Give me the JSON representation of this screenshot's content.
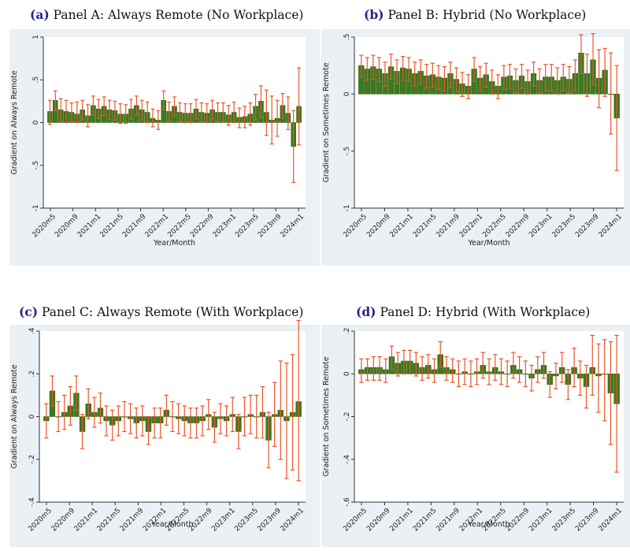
{
  "chart_data": [
    {
      "type": "bar",
      "title_letter": "(a)",
      "title": "Panel A: Always Remote (No Workplace)",
      "xlabel": "Year/Month",
      "ylabel": "Gradient on Always Remote",
      "ylim": [
        -1,
        1
      ],
      "yticks": [
        {
          "v": 1,
          "l": "1"
        },
        {
          "v": 0.5,
          "l": ".5"
        },
        {
          "v": 0,
          "l": "0"
        },
        {
          "v": -0.5,
          "l": "-.5"
        },
        {
          "v": -1,
          "l": "-1"
        }
      ],
      "xticks": [
        "2020m5",
        "2020m9",
        "2021m1",
        "2021m5",
        "2021m9",
        "2022m1",
        "2022m5",
        "2022m9",
        "2023m1",
        "2023m5",
        "2023m9",
        "2024m1"
      ],
      "bar_color": "#3d7a1f",
      "ci_color": "#e8562a",
      "values": [
        0.13,
        0.26,
        0.15,
        0.13,
        0.12,
        0.1,
        0.15,
        0.08,
        0.2,
        0.16,
        0.19,
        0.15,
        0.14,
        0.1,
        0.1,
        0.16,
        0.2,
        0.15,
        0.12,
        0.05,
        0.03,
        0.26,
        0.13,
        0.19,
        0.12,
        0.11,
        0.11,
        0.16,
        0.12,
        0.11,
        0.15,
        0.12,
        0.12,
        0.09,
        0.12,
        0.06,
        0.07,
        0.1,
        0.19,
        0.25,
        0.12,
        0.03,
        0.05,
        0.2,
        0.11,
        -0.28,
        0.19
      ],
      "ci_low": [
        -0.02,
        0.14,
        0.01,
        0.0,
        0.01,
        0.0,
        0.03,
        -0.05,
        0.09,
        0.05,
        0.08,
        0.04,
        0.03,
        -0.01,
        -0.01,
        0.04,
        0.09,
        0.03,
        0.0,
        -0.05,
        -0.08,
        0.15,
        0.02,
        0.08,
        0.01,
        0.0,
        0.0,
        0.04,
        0.01,
        0.0,
        0.03,
        0.01,
        0.01,
        -0.03,
        0.0,
        -0.06,
        -0.06,
        -0.03,
        0.03,
        0.06,
        -0.15,
        -0.25,
        -0.16,
        0.05,
        -0.08,
        -0.7,
        -0.26
      ],
      "ci_high": [
        0.26,
        0.37,
        0.28,
        0.26,
        0.23,
        0.24,
        0.26,
        0.21,
        0.31,
        0.27,
        0.3,
        0.26,
        0.25,
        0.22,
        0.21,
        0.27,
        0.31,
        0.26,
        0.24,
        0.16,
        0.14,
        0.37,
        0.24,
        0.3,
        0.23,
        0.22,
        0.22,
        0.27,
        0.23,
        0.22,
        0.26,
        0.23,
        0.23,
        0.2,
        0.24,
        0.17,
        0.19,
        0.23,
        0.33,
        0.43,
        0.38,
        0.31,
        0.26,
        0.34,
        0.3,
        0.14,
        0.64
      ]
    },
    {
      "type": "bar",
      "title_letter": "(b)",
      "title": "Panel B: Hybrid (No Workplace)",
      "xlabel": "Year/Month",
      "ylabel": "Gradient on Sometimes Remote",
      "ylim": [
        -1,
        0.5
      ],
      "yticks": [
        {
          "v": 0.5,
          "l": ".5"
        },
        {
          "v": 0,
          "l": "0"
        },
        {
          "v": -0.5,
          "l": "-.5"
        },
        {
          "v": -1,
          "l": "-1"
        }
      ],
      "xticks": [
        "2020m5",
        "2020m9",
        "2021m1",
        "2021m5",
        "2021m9",
        "2022m1",
        "2022m5",
        "2022m9",
        "2023m1",
        "2023m5",
        "2023m9",
        "2024m1"
      ],
      "bar_color": "#3d7a1f",
      "ci_color": "#e8562a",
      "values": [
        0.25,
        0.22,
        0.24,
        0.22,
        0.18,
        0.24,
        0.2,
        0.23,
        0.22,
        0.18,
        0.2,
        0.16,
        0.17,
        0.15,
        0.14,
        0.18,
        0.13,
        0.09,
        0.07,
        0.22,
        0.14,
        0.17,
        0.11,
        0.07,
        0.15,
        0.16,
        0.12,
        0.16,
        0.11,
        0.18,
        0.12,
        0.15,
        0.15,
        0.12,
        0.15,
        0.13,
        0.18,
        0.36,
        0.18,
        0.3,
        0.14,
        0.21,
        0.0,
        -0.21
      ],
      "ci_low": [
        0.15,
        0.12,
        0.13,
        0.11,
        0.07,
        0.13,
        0.09,
        0.12,
        0.11,
        0.07,
        0.09,
        0.05,
        0.06,
        0.04,
        0.03,
        0.06,
        0.02,
        -0.02,
        -0.04,
        0.11,
        0.03,
        0.06,
        0.0,
        -0.04,
        0.04,
        0.05,
        0.01,
        0.05,
        0.0,
        0.07,
        0.01,
        0.03,
        0.03,
        0.0,
        0.03,
        0.01,
        0.03,
        0.18,
        -0.02,
        0.08,
        -0.12,
        -0.02,
        -0.35,
        -0.67
      ],
      "ci_high": [
        0.34,
        0.32,
        0.34,
        0.32,
        0.28,
        0.35,
        0.3,
        0.33,
        0.32,
        0.28,
        0.3,
        0.26,
        0.27,
        0.25,
        0.24,
        0.28,
        0.23,
        0.19,
        0.17,
        0.32,
        0.24,
        0.27,
        0.21,
        0.17,
        0.25,
        0.26,
        0.22,
        0.26,
        0.21,
        0.28,
        0.22,
        0.26,
        0.26,
        0.23,
        0.26,
        0.24,
        0.3,
        0.52,
        0.35,
        0.53,
        0.39,
        0.4,
        0.36,
        0.25
      ]
    },
    {
      "type": "bar",
      "title_letter": "(c)",
      "title": "Panel C: Always Remote (With Workplace)",
      "xlabel": "Year/Month",
      "ylabel": "Gradient on Always Remote",
      "ylim": [
        -0.4,
        0.4
      ],
      "yticks": [
        {
          "v": 0.4,
          "l": ".4"
        },
        {
          "v": 0.2,
          "l": ".2"
        },
        {
          "v": 0,
          "l": "0"
        },
        {
          "v": -0.2,
          "l": "-.2"
        },
        {
          "v": -0.4,
          "l": "-.4"
        }
      ],
      "xticks": [
        "2020m5",
        "2020m9",
        "2021m1",
        "2021m5",
        "2021m9",
        "2022m1",
        "2022m5",
        "2022m9",
        "2023m1",
        "2023m5",
        "2023m9",
        "2024m1"
      ],
      "bar_color": "#3d7a1f",
      "ci_color": "#e8562a",
      "values": [
        -0.02,
        0.12,
        0.0,
        0.02,
        0.05,
        0.11,
        -0.07,
        0.06,
        0.02,
        0.04,
        -0.02,
        -0.04,
        -0.02,
        0.0,
        -0.01,
        -0.03,
        -0.02,
        -0.07,
        -0.03,
        -0.03,
        0.03,
        0.0,
        -0.01,
        -0.02,
        -0.03,
        -0.03,
        -0.02,
        0.01,
        -0.05,
        -0.01,
        -0.02,
        0.01,
        -0.07,
        0.0,
        0.01,
        0.0,
        0.02,
        -0.11,
        0.01,
        0.03,
        -0.02,
        0.02,
        0.07
      ],
      "ci_low": [
        -0.1,
        0.05,
        -0.07,
        -0.06,
        -0.04,
        0.03,
        -0.15,
        -0.01,
        -0.05,
        -0.03,
        -0.09,
        -0.11,
        -0.09,
        -0.07,
        -0.08,
        -0.1,
        -0.09,
        -0.13,
        -0.1,
        -0.1,
        -0.04,
        -0.07,
        -0.08,
        -0.09,
        -0.1,
        -0.1,
        -0.09,
        -0.06,
        -0.12,
        -0.08,
        -0.09,
        -0.07,
        -0.15,
        -0.09,
        -0.08,
        -0.1,
        -0.1,
        -0.24,
        -0.14,
        -0.2,
        -0.29,
        -0.25,
        -0.3
      ],
      "ci_high": [
        0.06,
        0.19,
        0.07,
        0.1,
        0.14,
        0.19,
        0.01,
        0.13,
        0.09,
        0.11,
        0.05,
        0.03,
        0.05,
        0.07,
        0.06,
        0.04,
        0.05,
        0.0,
        0.04,
        0.04,
        0.1,
        0.07,
        0.06,
        0.05,
        0.04,
        0.04,
        0.05,
        0.08,
        0.02,
        0.06,
        0.05,
        0.09,
        0.01,
        0.09,
        0.1,
        0.1,
        0.14,
        0.02,
        0.16,
        0.26,
        0.25,
        0.29,
        0.45
      ]
    },
    {
      "type": "bar",
      "title_letter": "(d)",
      "title": "Panel D: Hybrid (With Workplace)",
      "xlabel": "Year/Month",
      "ylabel": "Gradient on Sometimes Remote",
      "ylim": [
        -0.6,
        0.2
      ],
      "yticks": [
        {
          "v": 0.2,
          "l": ".2"
        },
        {
          "v": 0,
          "l": "0"
        },
        {
          "v": -0.2,
          "l": "-.2"
        },
        {
          "v": -0.4,
          "l": "-.4"
        },
        {
          "v": -0.6,
          "l": "-.6"
        }
      ],
      "xticks": [
        "2020m5",
        "2020m9",
        "2021m1",
        "2021m5",
        "2021m9",
        "2022m1",
        "2022m5",
        "2022m9",
        "2023m1",
        "2023m5",
        "2023m9",
        "2024m1"
      ],
      "bar_color": "#3d7a1f",
      "ci_color": "#e8562a",
      "values": [
        0.02,
        0.03,
        0.03,
        0.03,
        0.02,
        0.08,
        0.05,
        0.06,
        0.06,
        0.05,
        0.03,
        0.04,
        0.02,
        0.09,
        0.03,
        0.02,
        0.0,
        0.01,
        0.0,
        0.01,
        0.04,
        0.01,
        0.03,
        0.01,
        0.0,
        0.04,
        0.02,
        0.0,
        -0.02,
        0.02,
        0.04,
        -0.05,
        -0.01,
        0.03,
        -0.05,
        0.03,
        -0.02,
        -0.06,
        0.03,
        -0.01,
        0.0,
        -0.09,
        -0.14
      ],
      "ci_low": [
        -0.04,
        -0.03,
        -0.03,
        -0.03,
        -0.04,
        0.02,
        -0.01,
        0.0,
        0.0,
        -0.01,
        -0.03,
        -0.02,
        -0.04,
        0.03,
        -0.03,
        -0.04,
        -0.06,
        -0.05,
        -0.06,
        -0.05,
        -0.02,
        -0.05,
        -0.03,
        -0.05,
        -0.06,
        -0.02,
        -0.04,
        -0.06,
        -0.08,
        -0.04,
        -0.02,
        -0.11,
        -0.07,
        -0.04,
        -0.12,
        -0.06,
        -0.1,
        -0.16,
        -0.1,
        -0.18,
        -0.22,
        -0.33,
        -0.46
      ],
      "ci_high": [
        0.07,
        0.07,
        0.08,
        0.08,
        0.07,
        0.13,
        0.1,
        0.11,
        0.11,
        0.1,
        0.08,
        0.09,
        0.07,
        0.15,
        0.08,
        0.07,
        0.06,
        0.07,
        0.06,
        0.07,
        0.1,
        0.07,
        0.09,
        0.07,
        0.06,
        0.1,
        0.08,
        0.06,
        0.04,
        0.08,
        0.1,
        0.01,
        0.05,
        0.1,
        0.02,
        0.12,
        0.06,
        0.04,
        0.18,
        0.14,
        0.16,
        0.15,
        0.18
      ]
    }
  ]
}
